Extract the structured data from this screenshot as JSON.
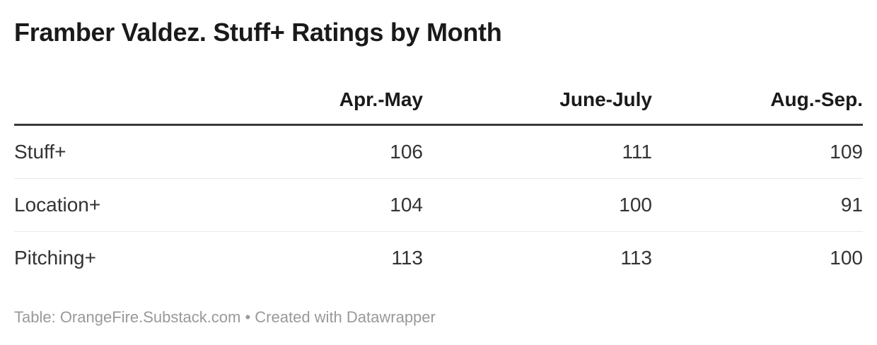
{
  "title": "Framber Valdez. Stuff+ Ratings by Month",
  "table": {
    "label_column_header": "",
    "columns": [
      "Apr.-May",
      "June-July",
      "Aug.-Sep."
    ],
    "rows": [
      {
        "label": "Stuff+",
        "values": [
          "106",
          "111",
          "109"
        ]
      },
      {
        "label": "Location+",
        "values": [
          "104",
          "100",
          "91"
        ]
      },
      {
        "label": "Pitching+",
        "values": [
          "113",
          "113",
          "100"
        ]
      }
    ]
  },
  "footer": {
    "text": "Table: OrangeFire.Substack.com • Created with Datawrapper"
  },
  "colors": {
    "title_text": "#1a1a1a",
    "body_text": "#333333",
    "header_rule": "#393939",
    "row_divider": "#e9e9e9",
    "footer_text": "#999999",
    "background": "#ffffff"
  },
  "chart_data": {
    "type": "table",
    "title": "Framber Valdez. Stuff+ Ratings by Month",
    "columns": [
      "",
      "Apr.-May",
      "June-July",
      "Aug.-Sep."
    ],
    "rows": [
      [
        "Stuff+",
        106,
        111,
        109
      ],
      [
        "Location+",
        104,
        100,
        91
      ],
      [
        "Pitching+",
        113,
        113,
        100
      ]
    ],
    "footer": "Table: OrangeFire.Substack.com • Created with Datawrapper",
    "layout_hints": {
      "label_column_align": "left",
      "value_columns_align": "right",
      "header_rule": "thick-dark",
      "row_dividers": "thin-light",
      "grid": "horizontal-only"
    }
  }
}
